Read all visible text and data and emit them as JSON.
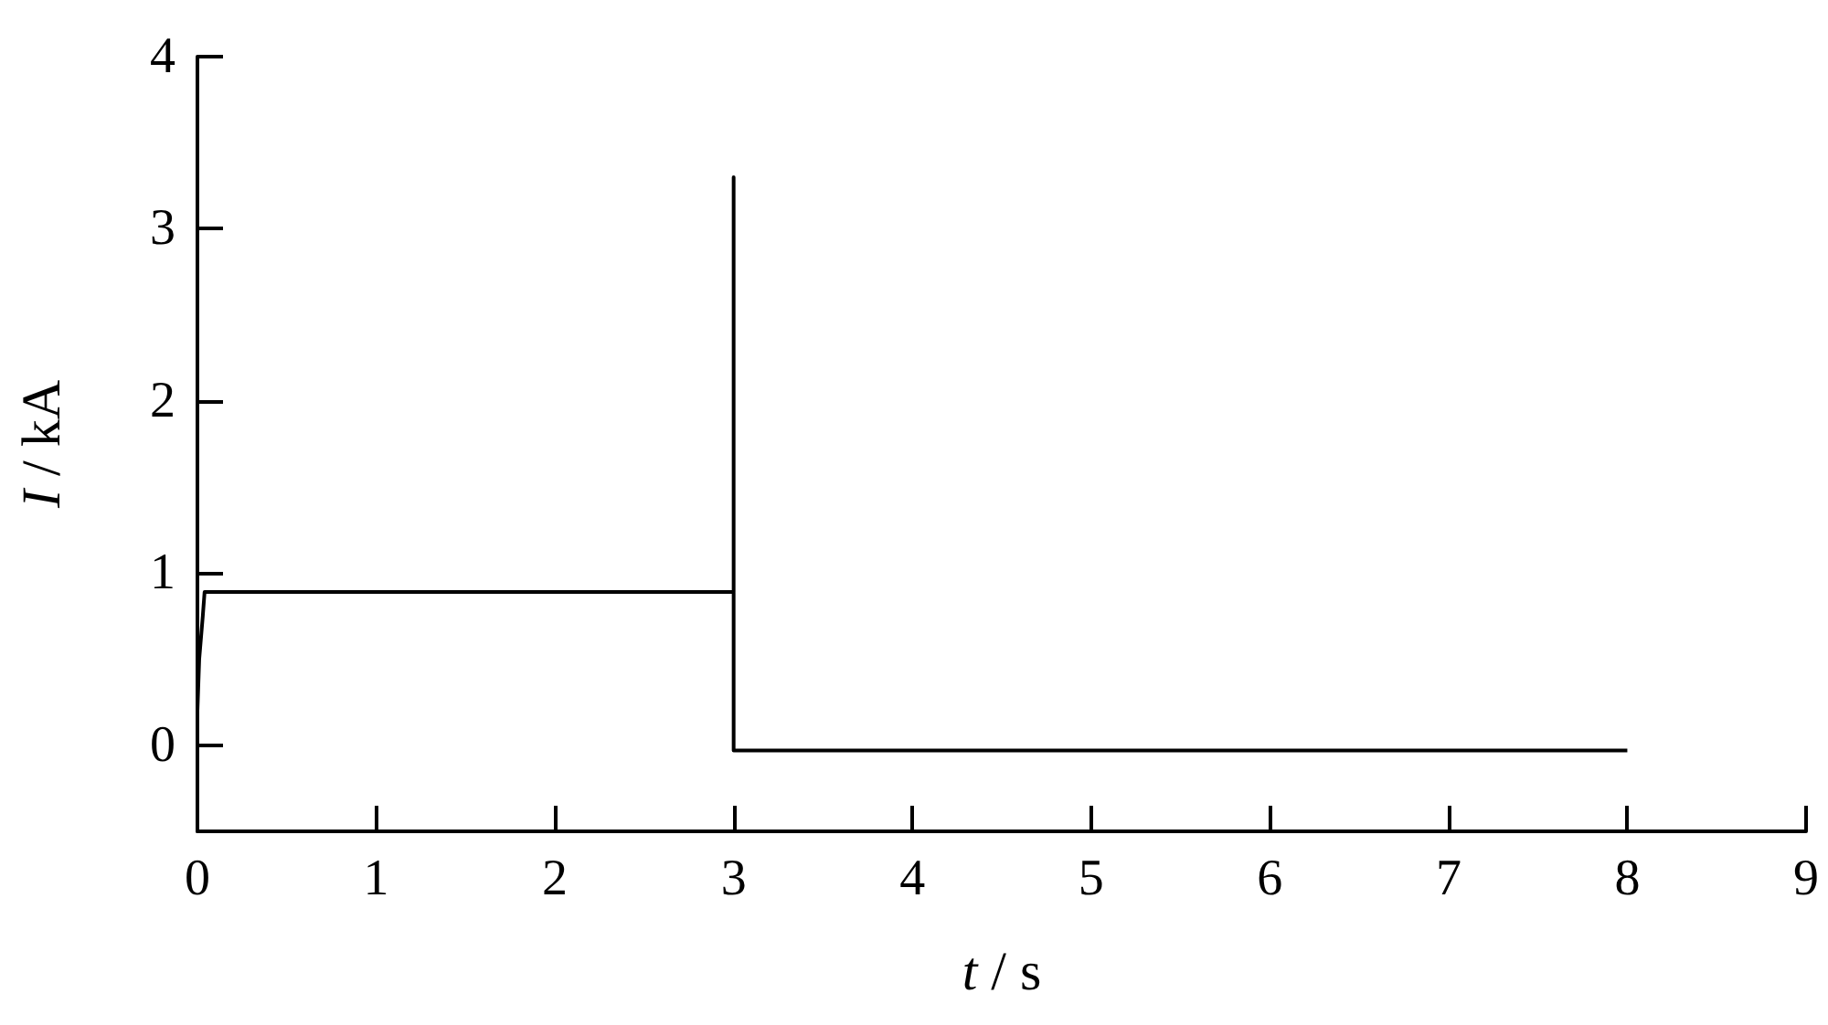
{
  "chart_data": {
    "type": "line",
    "xlabel": "t / s",
    "ylabel": "I / kA",
    "x": [
      0,
      0.01,
      0.03,
      0.04,
      3,
      3,
      3,
      8
    ],
    "series": [
      {
        "color": "#000000",
        "values": [
          0.2,
          0.5,
          0.75,
          0.89,
          0.89,
          3.3,
          -0.03,
          -0.03
        ]
      }
    ],
    "xlim": [
      0,
      9
    ],
    "xticks": [
      0,
      1,
      2,
      3,
      4,
      5,
      6,
      7,
      8,
      9
    ],
    "ylim": [
      -0.5,
      4
    ],
    "yticks": [
      0,
      1,
      2,
      3,
      4
    ],
    "marker": "none",
    "line_style": "solid"
  }
}
